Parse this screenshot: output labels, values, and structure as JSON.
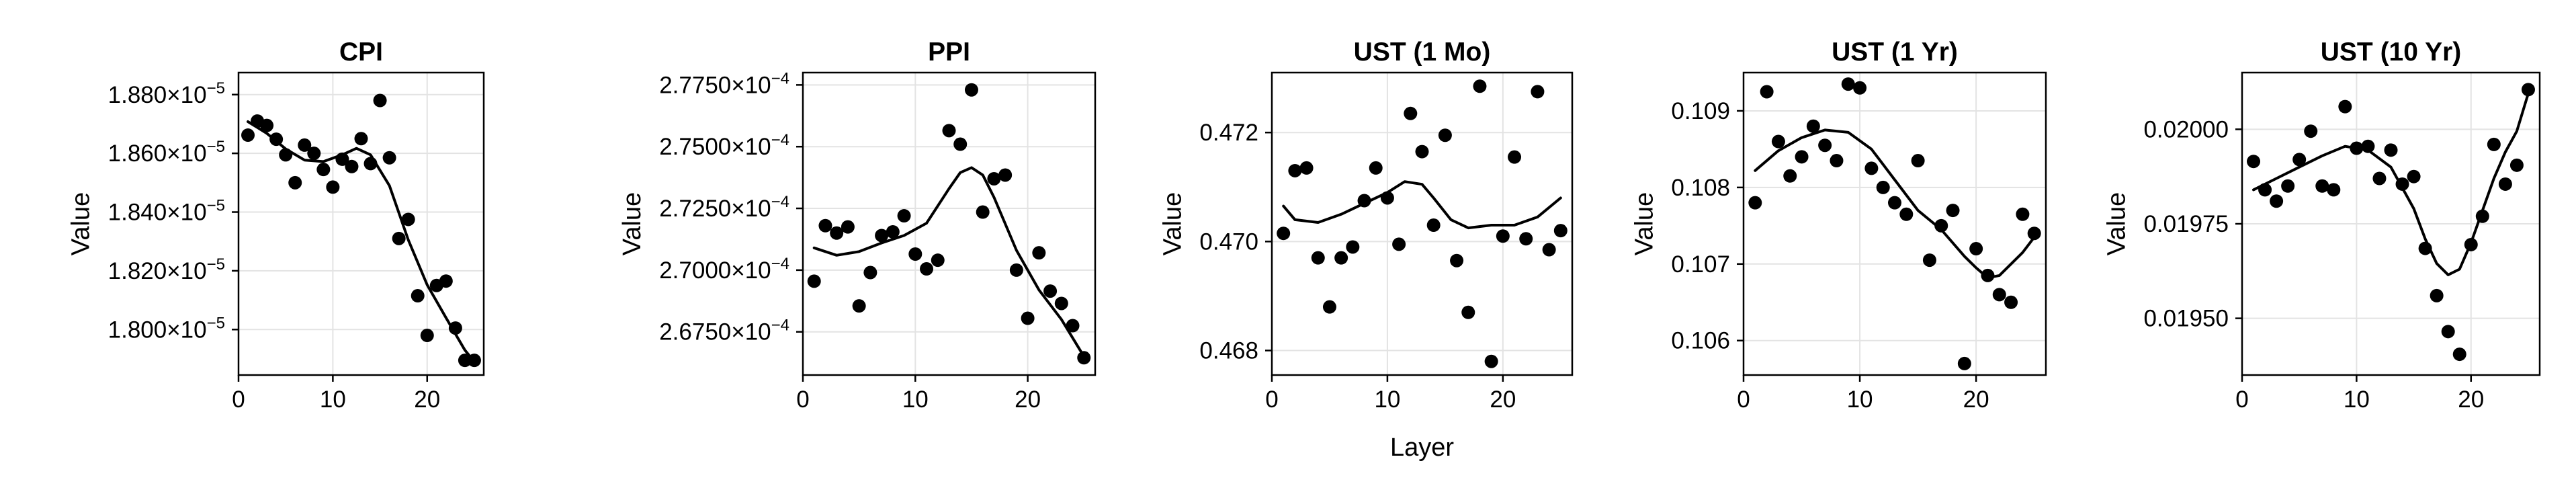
{
  "figure": {
    "shared_xlabel": "Layer"
  },
  "chart_data": [
    {
      "type": "scatter",
      "title": "CPI",
      "xlabel": "",
      "ylabel": "Value",
      "xlim": [
        0,
        26
      ],
      "ylim": [
        1.7845e-05,
        1.8875e-05
      ],
      "xticks": [
        0,
        10,
        20
      ],
      "xtick_labels": [
        "0",
        "10",
        "20"
      ],
      "yticks": [
        1.8e-05,
        1.82e-05,
        1.84e-05,
        1.86e-05,
        1.88e-05
      ],
      "ytick_labels": [
        {
          "mantissa": "1.800×10",
          "exp": "−5"
        },
        {
          "mantissa": "1.820×10",
          "exp": "−5"
        },
        {
          "mantissa": "1.840×10",
          "exp": "−5"
        },
        {
          "mantissa": "1.860×10",
          "exp": "−5"
        },
        {
          "mantissa": "1.880×10",
          "exp": "−5"
        }
      ],
      "grid": true,
      "points": [
        [
          1,
          1.8662e-05
        ],
        [
          2,
          1.871e-05
        ],
        [
          3,
          1.8695e-05
        ],
        [
          4,
          1.8648e-05
        ],
        [
          5,
          1.8595e-05
        ],
        [
          6,
          1.85e-05
        ],
        [
          7,
          1.8628e-05
        ],
        [
          8,
          1.86e-05
        ],
        [
          9,
          1.8545e-05
        ],
        [
          10,
          1.8485e-05
        ],
        [
          11,
          1.858e-05
        ],
        [
          12,
          1.8555e-05
        ],
        [
          13,
          1.865e-05
        ],
        [
          14,
          1.8565e-05
        ],
        [
          15,
          1.878e-05
        ],
        [
          16,
          1.8585e-05
        ],
        [
          17,
          1.831e-05
        ],
        [
          18,
          1.8375e-05
        ],
        [
          19,
          1.8115e-05
        ],
        [
          20,
          1.798e-05
        ],
        [
          21,
          1.815e-05
        ],
        [
          22,
          1.8165e-05
        ],
        [
          23,
          1.8005e-05
        ],
        [
          24,
          1.7895e-05
        ],
        [
          25,
          1.7895e-05
        ]
      ],
      "curve": [
        [
          1,
          1.8708e-05
        ],
        [
          3,
          1.8668e-05
        ],
        [
          5,
          1.8615e-05
        ],
        [
          7,
          1.8577e-05
        ],
        [
          9,
          1.8572e-05
        ],
        [
          11,
          1.8595e-05
        ],
        [
          12.5,
          1.8617e-05
        ],
        [
          14,
          1.8595e-05
        ],
        [
          16,
          1.849e-05
        ],
        [
          18,
          1.8305e-05
        ],
        [
          20,
          1.8152e-05
        ],
        [
          22,
          1.804e-05
        ],
        [
          24,
          1.793e-05
        ],
        [
          25,
          1.789e-05
        ]
      ]
    },
    {
      "type": "scatter",
      "title": "PPI",
      "xlabel": "",
      "ylabel": "Value",
      "xlim": [
        0,
        26
      ],
      "ylim": [
        0.00026575,
        0.000278
      ],
      "xticks": [
        0,
        10,
        20
      ],
      "xtick_labels": [
        "0",
        "10",
        "20"
      ],
      "yticks": [
        0.0002675,
        0.00027,
        0.0002725,
        0.000275,
        0.0002775
      ],
      "ytick_labels": [
        {
          "mantissa": "2.6750×10",
          "exp": "−4"
        },
        {
          "mantissa": "2.7000×10",
          "exp": "−4"
        },
        {
          "mantissa": "2.7250×10",
          "exp": "−4"
        },
        {
          "mantissa": "2.7500×10",
          "exp": "−4"
        },
        {
          "mantissa": "2.7750×10",
          "exp": "−4"
        }
      ],
      "grid": true,
      "points": [
        [
          1,
          0.00026955
        ],
        [
          2,
          0.0002718
        ],
        [
          3,
          0.0002715
        ],
        [
          4,
          0.00027175
        ],
        [
          5,
          0.00026855
        ],
        [
          6,
          0.0002699
        ],
        [
          7,
          0.0002714
        ],
        [
          8,
          0.00027155
        ],
        [
          9,
          0.0002722
        ],
        [
          10,
          0.00027065
        ],
        [
          11,
          0.00027005
        ],
        [
          12,
          0.0002704
        ],
        [
          13,
          0.00027565
        ],
        [
          14,
          0.0002751
        ],
        [
          15,
          0.0002773
        ],
        [
          16,
          0.00027235
        ],
        [
          17,
          0.0002737
        ],
        [
          18,
          0.00027385
        ],
        [
          19,
          0.00027
        ],
        [
          20,
          0.00026805
        ],
        [
          21,
          0.0002707
        ],
        [
          22,
          0.00026915
        ],
        [
          23,
          0.00026865
        ],
        [
          24,
          0.00026775
        ],
        [
          25,
          0.00026645
        ]
      ],
      "curve": [
        [
          1,
          0.0002709
        ],
        [
          3,
          0.0002706
        ],
        [
          5,
          0.00027075
        ],
        [
          7,
          0.0002711
        ],
        [
          9,
          0.0002714
        ],
        [
          11,
          0.0002719
        ],
        [
          13,
          0.0002733
        ],
        [
          14,
          0.00027395
        ],
        [
          15,
          0.00027415
        ],
        [
          16,
          0.00027385
        ],
        [
          17,
          0.00027295
        ],
        [
          19,
          0.0002708
        ],
        [
          21,
          0.0002692
        ],
        [
          23,
          0.000268
        ],
        [
          25,
          0.0002665
        ]
      ]
    },
    {
      "type": "scatter",
      "title": "UST (1 Mo)",
      "xlabel": "Layer",
      "ylabel": "Value",
      "xlim": [
        0,
        26
      ],
      "ylim": [
        0.46755,
        0.4731
      ],
      "xticks": [
        0,
        10,
        20
      ],
      "xtick_labels": [
        "0",
        "10",
        "20"
      ],
      "yticks": [
        0.468,
        0.47,
        0.472
      ],
      "ytick_labels": [
        {
          "mantissa": "0.468",
          "exp": ""
        },
        {
          "mantissa": "0.470",
          "exp": ""
        },
        {
          "mantissa": "0.472",
          "exp": ""
        }
      ],
      "grid": true,
      "points": [
        [
          1,
          0.47015
        ],
        [
          2,
          0.4713
        ],
        [
          3,
          0.47135
        ],
        [
          4,
          0.4697
        ],
        [
          5,
          0.4688
        ],
        [
          6,
          0.4697
        ],
        [
          7,
          0.4699
        ],
        [
          8,
          0.47075
        ],
        [
          9,
          0.47135
        ],
        [
          10,
          0.4708
        ],
        [
          11,
          0.46995
        ],
        [
          12,
          0.47235
        ],
        [
          13,
          0.47165
        ],
        [
          14,
          0.4703
        ],
        [
          15,
          0.47195
        ],
        [
          16,
          0.46965
        ],
        [
          17,
          0.4687
        ],
        [
          18,
          0.47285
        ],
        [
          19,
          0.4678
        ],
        [
          20,
          0.4701
        ],
        [
          21,
          0.47155
        ],
        [
          22,
          0.47005
        ],
        [
          23,
          0.47275
        ],
        [
          24,
          0.46985
        ],
        [
          25,
          0.4702
        ]
      ],
      "curve": [
        [
          1,
          0.47065
        ],
        [
          2,
          0.4704
        ],
        [
          4,
          0.47035
        ],
        [
          6,
          0.4705
        ],
        [
          8,
          0.4707
        ],
        [
          10,
          0.4709
        ],
        [
          11.5,
          0.4711
        ],
        [
          13,
          0.47105
        ],
        [
          14,
          0.4708
        ],
        [
          15.5,
          0.4704
        ],
        [
          17,
          0.47025
        ],
        [
          19,
          0.4703
        ],
        [
          21,
          0.4703
        ],
        [
          23,
          0.47045
        ],
        [
          25,
          0.4708
        ]
      ]
    },
    {
      "type": "scatter",
      "title": "UST (1 Yr)",
      "xlabel": "",
      "ylabel": "Value",
      "xlim": [
        0,
        26
      ],
      "ylim": [
        0.10555,
        0.1095
      ],
      "xticks": [
        0,
        10,
        20
      ],
      "xtick_labels": [
        "0",
        "10",
        "20"
      ],
      "yticks": [
        0.106,
        0.107,
        0.108,
        0.109
      ],
      "ytick_labels": [
        {
          "mantissa": "0.106",
          "exp": ""
        },
        {
          "mantissa": "0.107",
          "exp": ""
        },
        {
          "mantissa": "0.108",
          "exp": ""
        },
        {
          "mantissa": "0.109",
          "exp": ""
        }
      ],
      "grid": true,
      "points": [
        [
          1,
          0.1078
        ],
        [
          2,
          0.10925
        ],
        [
          3,
          0.1086
        ],
        [
          4,
          0.10815
        ],
        [
          5,
          0.1084
        ],
        [
          6,
          0.1088
        ],
        [
          7,
          0.10855
        ],
        [
          8,
          0.10835
        ],
        [
          9,
          0.10935
        ],
        [
          10,
          0.1093
        ],
        [
          11,
          0.10825
        ],
        [
          12,
          0.108
        ],
        [
          13,
          0.1078
        ],
        [
          14,
          0.10765
        ],
        [
          15,
          0.10835
        ],
        [
          16,
          0.10705
        ],
        [
          17,
          0.1075
        ],
        [
          18,
          0.1077
        ],
        [
          19,
          0.1057
        ],
        [
          20,
          0.1072
        ],
        [
          21,
          0.10685
        ],
        [
          22,
          0.1066
        ],
        [
          23,
          0.1065
        ],
        [
          24,
          0.10765
        ],
        [
          25,
          0.1074
        ]
      ],
      "curve": [
        [
          1,
          0.10822
        ],
        [
          3,
          0.10848
        ],
        [
          5,
          0.10865
        ],
        [
          7,
          0.10875
        ],
        [
          9,
          0.10872
        ],
        [
          11,
          0.1085
        ],
        [
          13,
          0.1081
        ],
        [
          15,
          0.1077
        ],
        [
          17,
          0.10745
        ],
        [
          19,
          0.1071
        ],
        [
          20,
          0.10695
        ],
        [
          21,
          0.10682
        ],
        [
          22,
          0.10685
        ],
        [
          23,
          0.107
        ],
        [
          24,
          0.10715
        ],
        [
          25,
          0.10735
        ]
      ]
    },
    {
      "type": "scatter",
      "title": "UST (10 Yr)",
      "xlabel": "",
      "ylabel": "Value",
      "xlim": [
        0,
        26
      ],
      "ylim": [
        0.01935,
        0.02015
      ],
      "xticks": [
        0,
        10,
        20
      ],
      "xtick_labels": [
        "0",
        "10",
        "20"
      ],
      "yticks": [
        0.0195,
        0.01975,
        0.02
      ],
      "ytick_labels": [
        {
          "mantissa": "0.01950",
          "exp": ""
        },
        {
          "mantissa": "0.01975",
          "exp": ""
        },
        {
          "mantissa": "0.02000",
          "exp": ""
        }
      ],
      "grid": true,
      "points": [
        [
          1,
          0.019915
        ],
        [
          2,
          0.01984
        ],
        [
          3,
          0.01981
        ],
        [
          4,
          0.01985
        ],
        [
          5,
          0.01992
        ],
        [
          6,
          0.019995
        ],
        [
          7,
          0.01985
        ],
        [
          8,
          0.01984
        ],
        [
          9,
          0.02006
        ],
        [
          10,
          0.01995
        ],
        [
          11,
          0.019955
        ],
        [
          12,
          0.01987
        ],
        [
          13,
          0.019945
        ],
        [
          14,
          0.019855
        ],
        [
          15,
          0.019875
        ],
        [
          16,
          0.019685
        ],
        [
          17,
          0.01956
        ],
        [
          18,
          0.019465
        ],
        [
          19,
          0.019405
        ],
        [
          20,
          0.019695
        ],
        [
          21,
          0.01977
        ],
        [
          22,
          0.01996
        ],
        [
          23,
          0.019855
        ],
        [
          24,
          0.019905
        ],
        [
          25,
          0.020105
        ]
      ],
      "curve": [
        [
          1,
          0.01984
        ],
        [
          3,
          0.01987
        ],
        [
          5,
          0.0199
        ],
        [
          7,
          0.01993
        ],
        [
          9,
          0.019955
        ],
        [
          11,
          0.019945
        ],
        [
          13,
          0.0199
        ],
        [
          15,
          0.01979
        ],
        [
          16,
          0.01971
        ],
        [
          17,
          0.019645
        ],
        [
          18,
          0.019615
        ],
        [
          19,
          0.01963
        ],
        [
          20,
          0.0197
        ],
        [
          21,
          0.019785
        ],
        [
          22,
          0.01987
        ],
        [
          23,
          0.01994
        ],
        [
          24,
          0.019995
        ],
        [
          25,
          0.020095
        ]
      ]
    }
  ]
}
